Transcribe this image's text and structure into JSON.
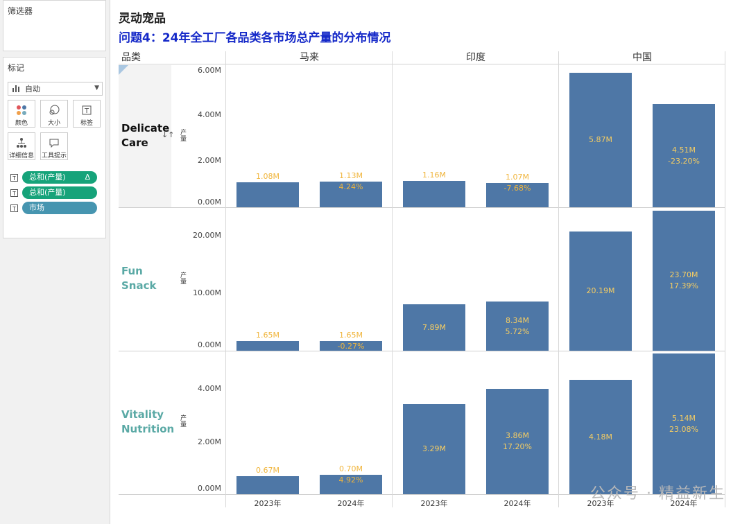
{
  "sidebar": {
    "filters_title": "筛选器",
    "marks_title": "标记",
    "mark_type": "自动",
    "tiles": {
      "color": "颜色",
      "size": "大小",
      "label": "标签",
      "detail": "详细信息",
      "tooltip": "工具提示"
    },
    "pills": [
      "总和(产量)",
      "总和(产量)",
      "市场"
    ],
    "pill_delta": "Δ"
  },
  "dashboard": {
    "title": "灵动宠品",
    "subtitle": "问题4：24年全工厂各品类各市场总产量的分布情况",
    "row_header": "品类",
    "markets": [
      "马来",
      "印度",
      "中国"
    ],
    "categories": [
      "Delicate Care",
      "Fun Snack",
      "Vitality Nutrition"
    ],
    "axis_title": "产量",
    "years": [
      "2023年",
      "2024年",
      "2023年",
      "2024年",
      "2023年",
      "2024年"
    ],
    "ticks": {
      "delicate": [
        "6.00M",
        "4.00M",
        "2.00M",
        "0.00M"
      ],
      "fun": [
        "20.00M",
        "10.00M",
        "0.00M"
      ],
      "vitality": [
        "4.00M",
        "2.00M",
        "0.00M"
      ]
    },
    "watermark": "公众号 · 精益新生"
  },
  "chart_data": {
    "type": "bar",
    "title": "灵动宠品",
    "subtitle": "问题4：24年全工厂各品类各市场总产量的分布情况",
    "ylabel": "产量",
    "rows": [
      {
        "category": "Delicate Care",
        "ylim": [
          0,
          6.2
        ],
        "unit": "M",
        "markets": {
          "马来": {
            "2023年": {
              "value": 1.08,
              "label": "1.08M"
            },
            "2024年": {
              "value": 1.13,
              "label": "1.13M",
              "change": "4.24%"
            }
          },
          "印度": {
            "2023年": {
              "value": 1.16,
              "label": "1.16M"
            },
            "2024年": {
              "value": 1.07,
              "label": "1.07M",
              "change": "-7.68%"
            }
          },
          "中国": {
            "2023年": {
              "value": 5.87,
              "label": "5.87M"
            },
            "2024年": {
              "value": 4.51,
              "label": "4.51M",
              "change": "-23.20%"
            }
          }
        }
      },
      {
        "category": "Fun Snack",
        "ylim": [
          0,
          24.0
        ],
        "unit": "M",
        "markets": {
          "马来": {
            "2023年": {
              "value": 1.65,
              "label": "1.65M"
            },
            "2024年": {
              "value": 1.65,
              "label": "1.65M",
              "change": "-0.27%"
            }
          },
          "印度": {
            "2023年": {
              "value": 7.89,
              "label": "7.89M"
            },
            "2024年": {
              "value": 8.34,
              "label": "8.34M",
              "change": "5.72%"
            }
          },
          "中国": {
            "2023年": {
              "value": 20.19,
              "label": "20.19M"
            },
            "2024年": {
              "value": 23.7,
              "label": "23.70M",
              "change": "17.39%"
            }
          }
        }
      },
      {
        "category": "Vitality Nutrition",
        "ylim": [
          0,
          5.2
        ],
        "unit": "M",
        "markets": {
          "马来": {
            "2023年": {
              "value": 0.67,
              "label": "0.67M"
            },
            "2024年": {
              "value": 0.7,
              "label": "0.70M",
              "change": "4.92%"
            }
          },
          "印度": {
            "2023年": {
              "value": 3.29,
              "label": "3.29M"
            },
            "2024年": {
              "value": 3.86,
              "label": "3.86M",
              "change": "17.20%"
            }
          },
          "中国": {
            "2023年": {
              "value": 4.18,
              "label": "4.18M"
            },
            "2024年": {
              "value": 5.14,
              "label": "5.14M",
              "change": "23.08%"
            }
          }
        }
      }
    ],
    "colors": {
      "bar": "#4e77a6",
      "label_outside": "#f0b53c",
      "label_inside": "#f6cd62"
    }
  }
}
